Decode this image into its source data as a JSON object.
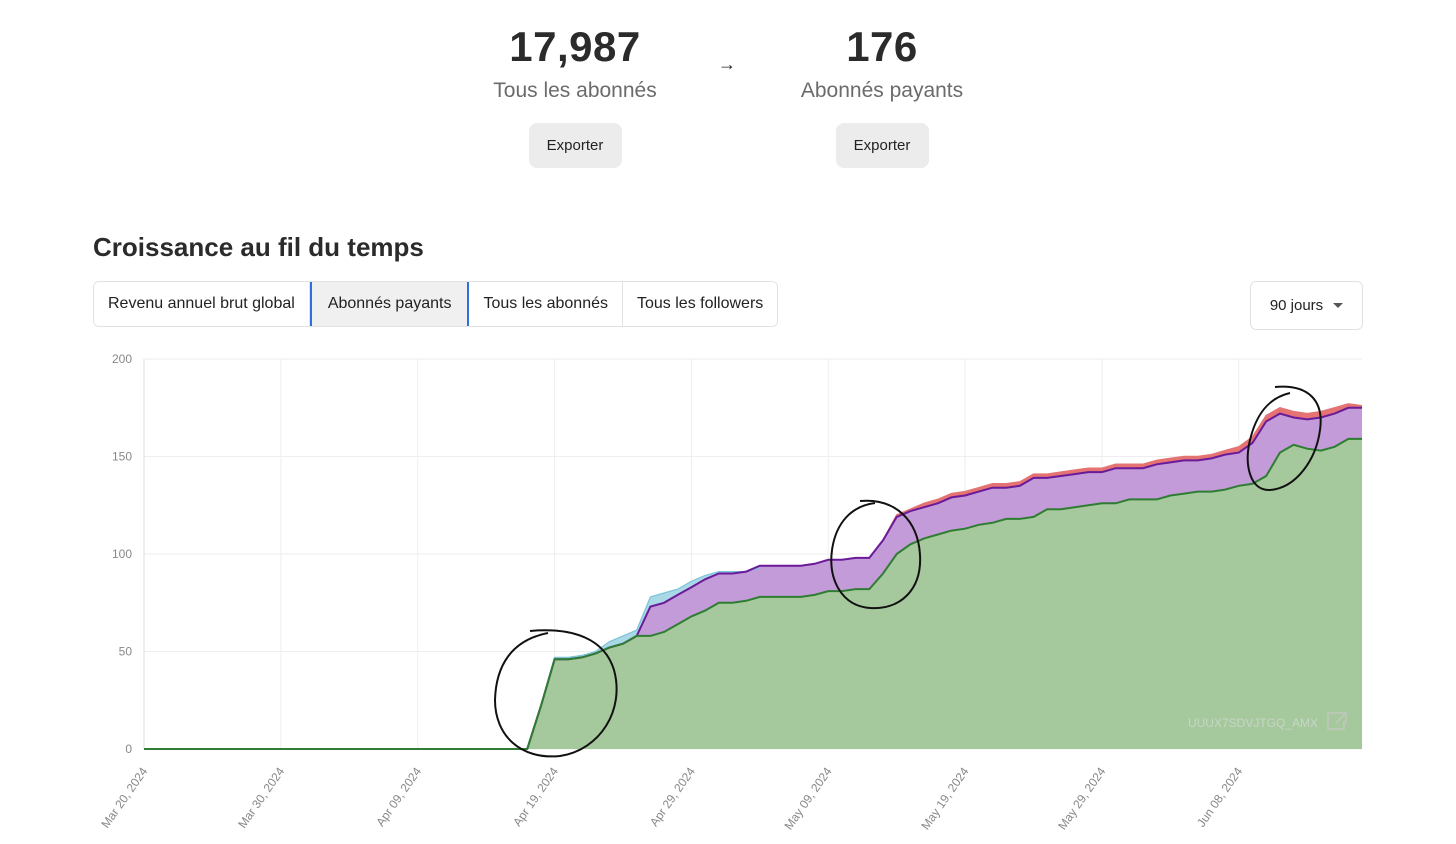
{
  "stats": [
    {
      "value": "17,987",
      "label": "Tous les abonnés",
      "button": "Exporter"
    },
    {
      "value": "176",
      "label": "Abonnés payants",
      "button": "Exporter"
    }
  ],
  "arrow": "→",
  "section_title": "Croissance au fil du temps",
  "tabs": [
    {
      "label": "Revenu annuel brut global",
      "active": false
    },
    {
      "label": "Abonnés payants",
      "active": true
    },
    {
      "label": "Tous les abonnés",
      "active": false
    },
    {
      "label": "Tous les followers",
      "active": false
    }
  ],
  "range": {
    "selected": "90 jours"
  },
  "watermark": "UUUX7SDVJTGQ_AMX",
  "colors": {
    "green_line": "#2e7d32",
    "green_fill": "#a5c89d",
    "purple_line": "#6a1b9a",
    "purple_fill": "#c39bd8",
    "red_line": "#e57373",
    "blue_fill": "#a9d8e6",
    "grid": "#eeeeee",
    "annotation": "#111111"
  },
  "chart_data": {
    "type": "area",
    "x": [
      "Mar 20, 2024",
      "Mar 30, 2024",
      "Apr 09, 2024",
      "Apr 19, 2024",
      "Apr 29, 2024",
      "May 09, 2024",
      "May 19, 2024",
      "May 29, 2024",
      "Jun 08, 2024"
    ],
    "ylim": [
      0,
      200
    ],
    "yticks": [
      0,
      50,
      100,
      150,
      200
    ],
    "grid": true,
    "series": [
      {
        "key": "green",
        "points": [
          [
            0,
            0
          ],
          [
            28,
            0
          ],
          [
            29,
            22
          ],
          [
            30,
            46
          ],
          [
            31,
            46
          ],
          [
            32,
            47
          ],
          [
            33,
            49
          ],
          [
            34,
            52
          ],
          [
            35,
            54
          ],
          [
            36,
            58
          ],
          [
            37,
            58
          ],
          [
            38,
            60
          ],
          [
            39,
            64
          ],
          [
            40,
            68
          ],
          [
            41,
            71
          ],
          [
            42,
            75
          ],
          [
            43,
            75
          ],
          [
            44,
            76
          ],
          [
            45,
            78
          ],
          [
            46,
            78
          ],
          [
            47,
            78
          ],
          [
            48,
            78
          ],
          [
            49,
            79
          ],
          [
            50,
            81
          ],
          [
            51,
            81
          ],
          [
            52,
            82
          ],
          [
            53,
            82
          ],
          [
            54,
            90
          ],
          [
            55,
            100
          ],
          [
            56,
            105
          ],
          [
            57,
            108
          ],
          [
            58,
            110
          ],
          [
            59,
            112
          ],
          [
            60,
            113
          ],
          [
            61,
            115
          ],
          [
            62,
            116
          ],
          [
            63,
            118
          ],
          [
            64,
            118
          ],
          [
            65,
            119
          ],
          [
            66,
            123
          ],
          [
            67,
            123
          ],
          [
            68,
            124
          ],
          [
            69,
            125
          ],
          [
            70,
            126
          ],
          [
            71,
            126
          ],
          [
            72,
            128
          ],
          [
            73,
            128
          ],
          [
            74,
            128
          ],
          [
            75,
            130
          ],
          [
            76,
            131
          ],
          [
            77,
            132
          ],
          [
            78,
            132
          ],
          [
            79,
            133
          ],
          [
            80,
            135
          ],
          [
            81,
            136
          ],
          [
            82,
            140
          ],
          [
            83,
            152
          ],
          [
            84,
            156
          ],
          [
            85,
            154
          ],
          [
            86,
            153
          ],
          [
            87,
            155
          ],
          [
            88,
            159
          ],
          [
            89,
            159
          ]
        ]
      },
      {
        "key": "purple",
        "points": [
          [
            0,
            0
          ],
          [
            28,
            0
          ],
          [
            29,
            22
          ],
          [
            30,
            46
          ],
          [
            31,
            46
          ],
          [
            32,
            47
          ],
          [
            33,
            49
          ],
          [
            34,
            52
          ],
          [
            35,
            54
          ],
          [
            36,
            58
          ],
          [
            37,
            73
          ],
          [
            38,
            75
          ],
          [
            39,
            79
          ],
          [
            40,
            83
          ],
          [
            41,
            87
          ],
          [
            42,
            90
          ],
          [
            43,
            90
          ],
          [
            44,
            91
          ],
          [
            45,
            94
          ],
          [
            46,
            94
          ],
          [
            47,
            94
          ],
          [
            48,
            94
          ],
          [
            49,
            95
          ],
          [
            50,
            97
          ],
          [
            51,
            97
          ],
          [
            52,
            98
          ],
          [
            53,
            98
          ],
          [
            54,
            107
          ],
          [
            55,
            119
          ],
          [
            56,
            122
          ],
          [
            57,
            124
          ],
          [
            58,
            126
          ],
          [
            59,
            129
          ],
          [
            60,
            130
          ],
          [
            61,
            132
          ],
          [
            62,
            134
          ],
          [
            63,
            134
          ],
          [
            64,
            135
          ],
          [
            65,
            139
          ],
          [
            66,
            139
          ],
          [
            67,
            140
          ],
          [
            68,
            141
          ],
          [
            69,
            142
          ],
          [
            70,
            142
          ],
          [
            71,
            144
          ],
          [
            72,
            144
          ],
          [
            73,
            144
          ],
          [
            74,
            146
          ],
          [
            75,
            147
          ],
          [
            76,
            148
          ],
          [
            77,
            148
          ],
          [
            78,
            149
          ],
          [
            79,
            151
          ],
          [
            80,
            152
          ],
          [
            81,
            157
          ],
          [
            82,
            168
          ],
          [
            83,
            172
          ],
          [
            84,
            170
          ],
          [
            85,
            169
          ],
          [
            86,
            170
          ],
          [
            87,
            172
          ],
          [
            88,
            175
          ],
          [
            89,
            175
          ]
        ]
      },
      {
        "key": "red",
        "points": [
          [
            0,
            0
          ],
          [
            28,
            0
          ],
          [
            29,
            22
          ],
          [
            30,
            46
          ],
          [
            31,
            46
          ],
          [
            32,
            47
          ],
          [
            33,
            49
          ],
          [
            34,
            52
          ],
          [
            35,
            54
          ],
          [
            36,
            58
          ],
          [
            37,
            73
          ],
          [
            38,
            75
          ],
          [
            39,
            79
          ],
          [
            40,
            83
          ],
          [
            41,
            87
          ],
          [
            42,
            90
          ],
          [
            43,
            90
          ],
          [
            44,
            91
          ],
          [
            45,
            94
          ],
          [
            46,
            94
          ],
          [
            47,
            94
          ],
          [
            48,
            94
          ],
          [
            49,
            95
          ],
          [
            50,
            97
          ],
          [
            51,
            97
          ],
          [
            52,
            98
          ],
          [
            53,
            98
          ],
          [
            54,
            107
          ],
          [
            55,
            120
          ],
          [
            56,
            123
          ],
          [
            57,
            126
          ],
          [
            58,
            128
          ],
          [
            59,
            131
          ],
          [
            60,
            132
          ],
          [
            61,
            134
          ],
          [
            62,
            136
          ],
          [
            63,
            136
          ],
          [
            64,
            137
          ],
          [
            65,
            141
          ],
          [
            66,
            141
          ],
          [
            67,
            142
          ],
          [
            68,
            143
          ],
          [
            69,
            144
          ],
          [
            70,
            144
          ],
          [
            71,
            146
          ],
          [
            72,
            146
          ],
          [
            73,
            146
          ],
          [
            74,
            148
          ],
          [
            75,
            149
          ],
          [
            76,
            150
          ],
          [
            77,
            150
          ],
          [
            78,
            151
          ],
          [
            79,
            153
          ],
          [
            80,
            155
          ],
          [
            81,
            160
          ],
          [
            82,
            171
          ],
          [
            83,
            175
          ],
          [
            84,
            173
          ],
          [
            85,
            172
          ],
          [
            86,
            173
          ],
          [
            87,
            175
          ],
          [
            88,
            177
          ],
          [
            89,
            176
          ]
        ]
      },
      {
        "key": "blue",
        "points": [
          [
            29,
            22
          ],
          [
            30,
            47
          ],
          [
            31,
            47
          ],
          [
            32,
            48
          ],
          [
            33,
            50
          ],
          [
            34,
            55
          ],
          [
            35,
            58
          ],
          [
            36,
            61
          ],
          [
            37,
            78
          ],
          [
            38,
            80
          ],
          [
            39,
            82
          ],
          [
            40,
            86
          ],
          [
            41,
            89
          ],
          [
            42,
            91
          ],
          [
            43,
            91
          ],
          [
            44,
            91
          ],
          [
            45,
            93
          ]
        ]
      }
    ]
  }
}
